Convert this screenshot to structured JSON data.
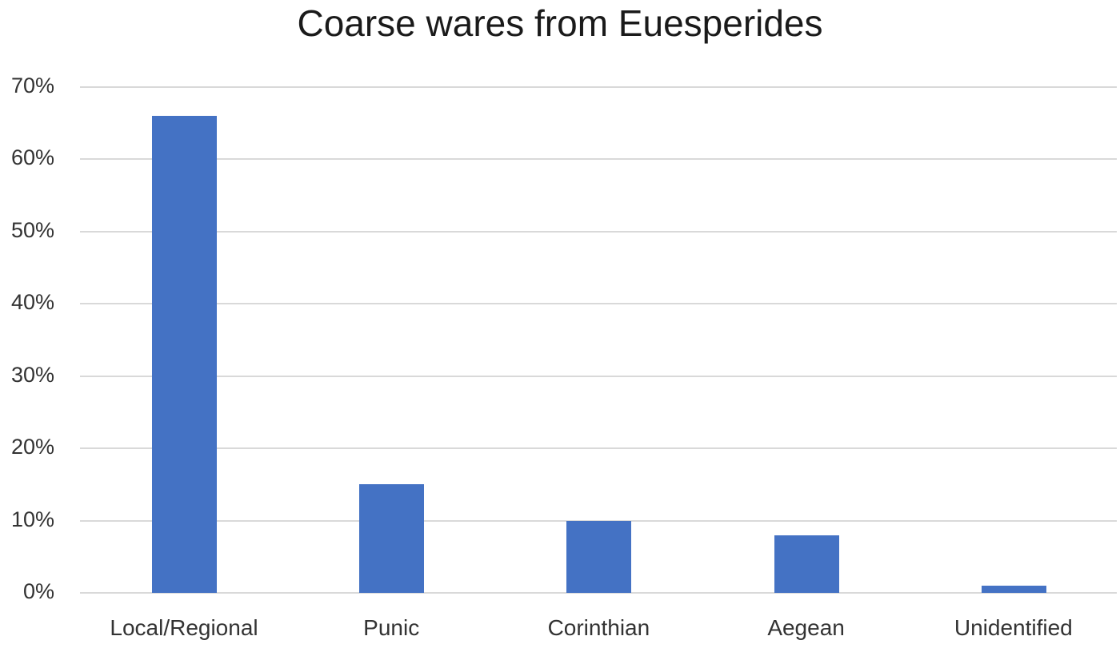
{
  "chart_data": {
    "type": "bar",
    "title": "Coarse wares from Euesperides",
    "xlabel": "",
    "ylabel": "",
    "categories": [
      "Local/Regional",
      "Punic",
      "Corinthian",
      "Aegean",
      "Unidentified"
    ],
    "values": [
      66,
      15,
      10,
      8,
      1
    ],
    "value_unit": "%",
    "ylim": [
      0,
      70
    ],
    "yticks": [
      "0%",
      "10%",
      "20%",
      "30%",
      "40%",
      "50%",
      "60%",
      "70%"
    ],
    "grid": true,
    "legend": null,
    "bar_color": "#4472c4"
  }
}
